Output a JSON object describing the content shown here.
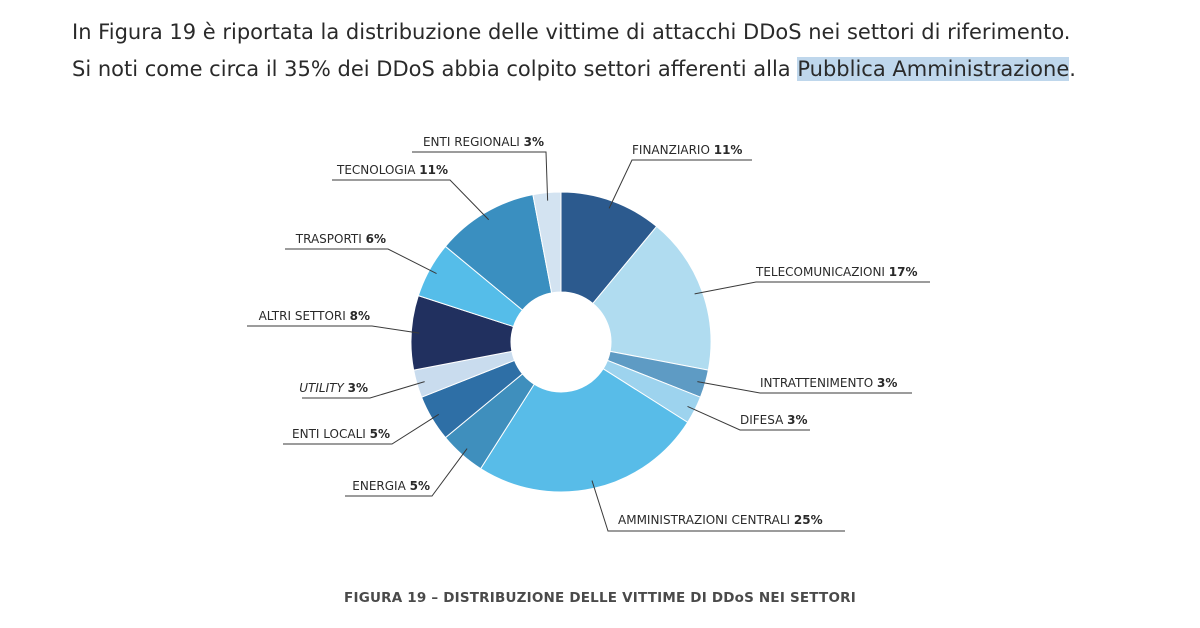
{
  "intro": {
    "line1": "In Figura 19 è riportata la distribuzione delle vittime di attacchi DDoS nei settori di riferimento.",
    "line2_before": "Si noti come circa il 35% dei DDoS abbia colpito settori afferenti alla ",
    "line2_highlight": "Pubblica Amministrazione",
    "line2_after": "."
  },
  "caption": "FIGURA 19 – DISTRIBUZIONE DELLE VITTIME DI DDoS NEI SETTORI",
  "chart_data": {
    "type": "pie",
    "donut": true,
    "title": "",
    "slices": [
      {
        "label": "FINANZIARIO",
        "value": 11,
        "pct_label": "11%",
        "color": "#2c5a8e",
        "italic": false
      },
      {
        "label": "TELECOMUNICAZIONI",
        "value": 17,
        "pct_label": "17%",
        "color": "#b0dcf0",
        "italic": false
      },
      {
        "label": "INTRATTENIMENTO",
        "value": 3,
        "pct_label": "3%",
        "color": "#5e9bc4",
        "italic": false
      },
      {
        "label": "DIFESA",
        "value": 3,
        "pct_label": "3%",
        "color": "#9dd3ee",
        "italic": false
      },
      {
        "label": "AMMINISTRAZIONI CENTRALI",
        "value": 25,
        "pct_label": "25%",
        "color": "#58bce8",
        "italic": false
      },
      {
        "label": "ENERGIA",
        "value": 5,
        "pct_label": "5%",
        "color": "#3f8fbd",
        "italic": false
      },
      {
        "label": "ENTI LOCALI",
        "value": 5,
        "pct_label": "5%",
        "color": "#2e6fa6",
        "italic": false
      },
      {
        "label": "UTILITY",
        "value": 3,
        "pct_label": "3%",
        "color": "#c9dcee",
        "italic": true
      },
      {
        "label": "ALTRI SETTORI",
        "value": 8,
        "pct_label": "8%",
        "color": "#21305f",
        "italic": false
      },
      {
        "label": "TRASPORTI",
        "value": 6,
        "pct_label": "6%",
        "color": "#55bde9",
        "italic": false
      },
      {
        "label": "TECNOLOGIA",
        "value": 11,
        "pct_label": "11%",
        "color": "#3a8fc0",
        "italic": false
      },
      {
        "label": "ENTI REGIONALI",
        "value": 3,
        "pct_label": "3%",
        "color": "#d3e3f1",
        "italic": false
      }
    ]
  }
}
